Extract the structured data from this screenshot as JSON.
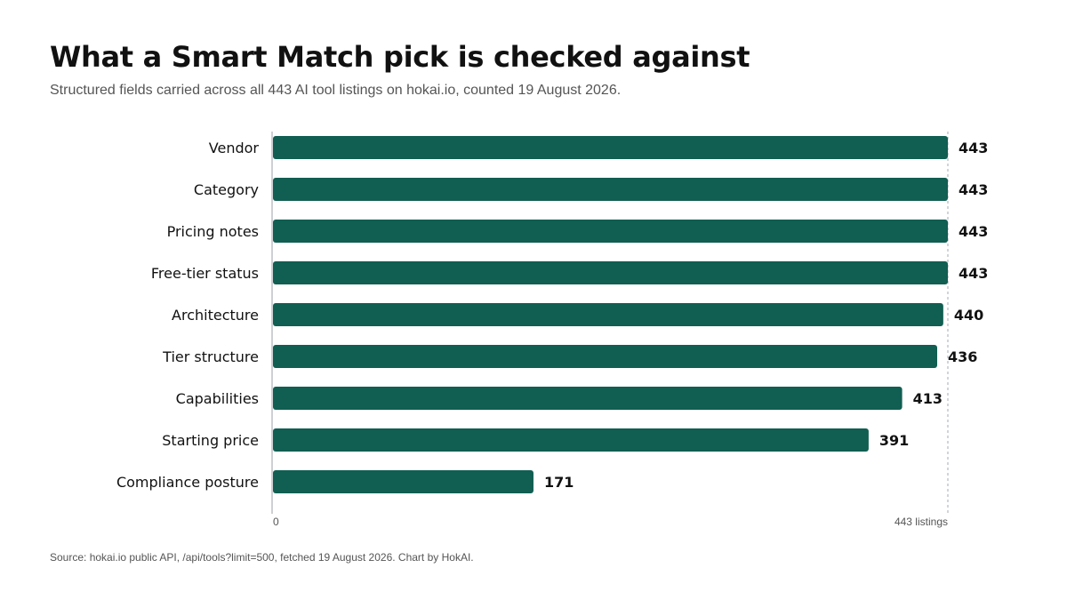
{
  "title": "What a Smart Match pick is checked against",
  "subtitle": "Structured fields carried across all 443 AI tool listings on hokai.io, counted 19 August 2026.",
  "source": "Source: hokai.io public API, /api/tools?limit=500, fetched 19 August 2026. Chart by HokAI.",
  "colors": {
    "bar": "#115e52",
    "axis": "#9aa0a6",
    "reference_line": "#b8bec6"
  },
  "chart_data": {
    "type": "bar",
    "orientation": "horizontal",
    "categories": [
      "Vendor",
      "Category",
      "Pricing notes",
      "Free-tier status",
      "Architecture",
      "Tier structure",
      "Capabilities",
      "Starting price",
      "Compliance posture"
    ],
    "values": [
      443,
      443,
      443,
      443,
      440,
      436,
      413,
      391,
      171
    ],
    "value_labels": [
      "443",
      "443",
      "443",
      "443",
      "440",
      "436",
      "413",
      "391",
      "171"
    ],
    "xlim": [
      0,
      443
    ],
    "x_ticks": [
      {
        "value": 0,
        "label": "0"
      },
      {
        "value": 443,
        "label": "443 listings"
      }
    ],
    "reference_line": 443,
    "grid": false,
    "legend": "none"
  }
}
